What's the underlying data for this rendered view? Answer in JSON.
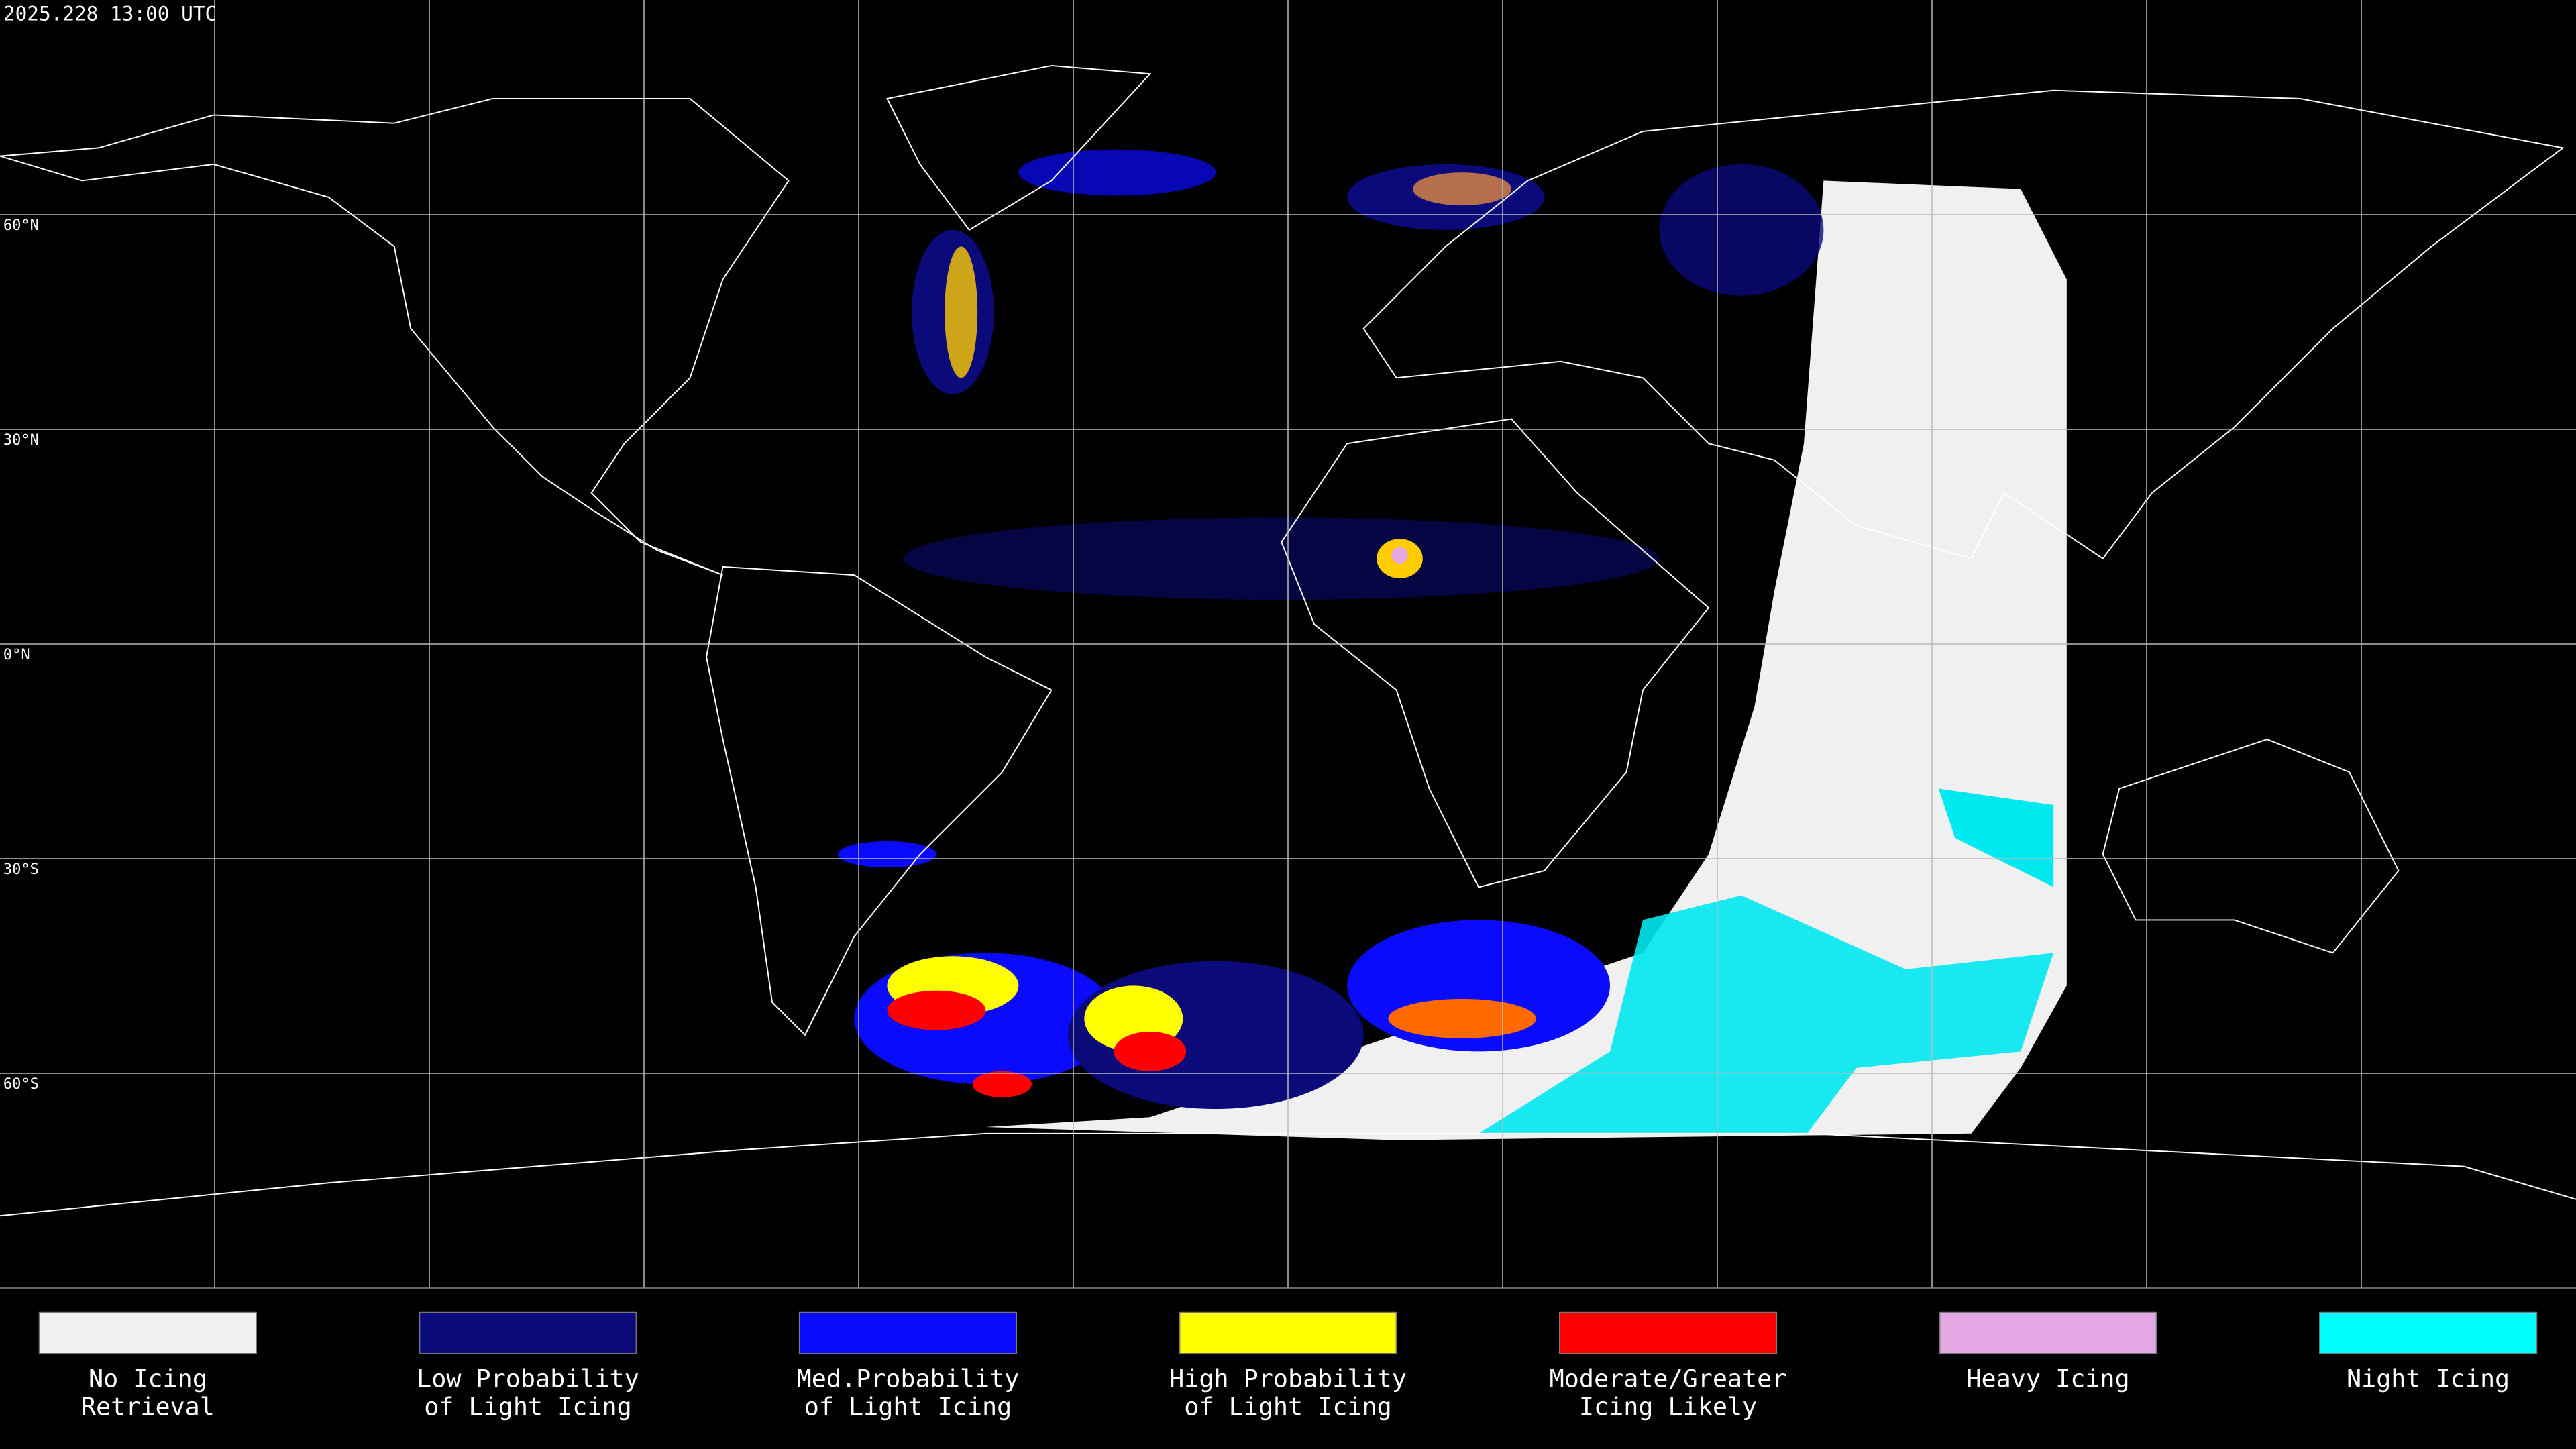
{
  "header": {
    "timestamp": "2025.228 13:00 UTC"
  },
  "map": {
    "latitude_lines": [
      {
        "value": 60,
        "label": "60°N"
      },
      {
        "value": 30,
        "label": "30°N"
      },
      {
        "value": 0,
        "label": "0°N"
      },
      {
        "value": -30,
        "label": "30°S"
      },
      {
        "value": -60,
        "label": "60°S"
      }
    ]
  },
  "legend": [
    {
      "lines": [
        "No Icing",
        "Retrieval"
      ],
      "color": "#f0f0f0"
    },
    {
      "lines": [
        "Low Probability",
        "of Light Icing"
      ],
      "color": "#0a0a7a"
    },
    {
      "lines": [
        "Med.Probability",
        "of Light Icing"
      ],
      "color": "#0a0aff"
    },
    {
      "lines": [
        "High Probability",
        "of Light Icing"
      ],
      "color": "#ffff00"
    },
    {
      "lines": [
        "Moderate/Greater",
        "Icing Likely"
      ],
      "color": "#ff0000"
    },
    {
      "lines": [
        "Heavy Icing"
      ],
      "color": "#e4a8e4"
    },
    {
      "lines": [
        "Night Icing"
      ],
      "color": "#00ffff"
    }
  ]
}
